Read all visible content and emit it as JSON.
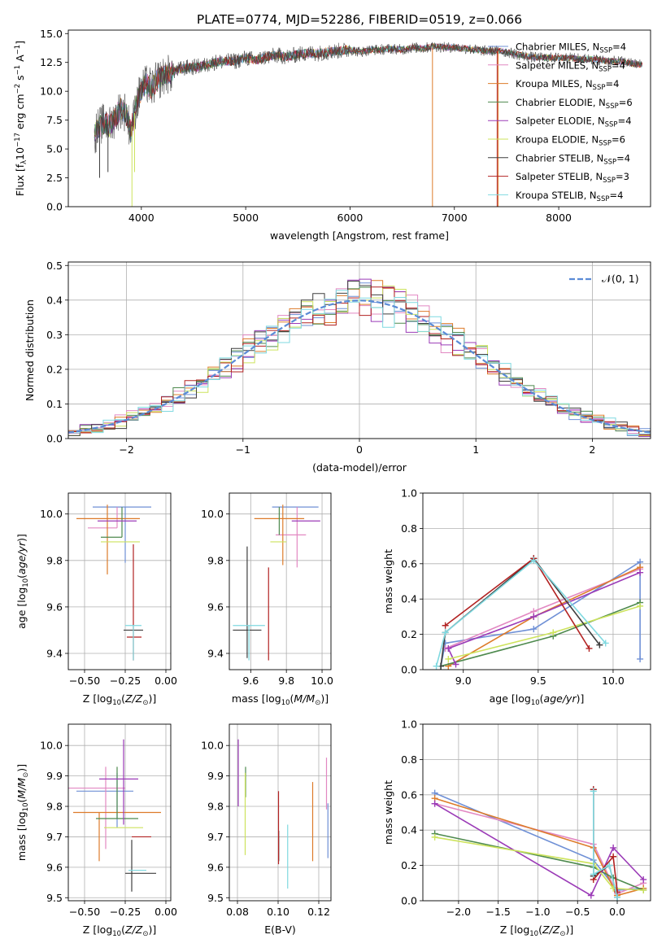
{
  "figure_title": "PLATE=0774, MJD=52286, FIBERID=0519, z=0.066",
  "colors": [
    "#6f90d6",
    "#e288c2",
    "#dd7b2a",
    "#4e8a4e",
    "#9b3bb7",
    "#cde35d",
    "#3f3f3f",
    "#b22222",
    "#7fd9e0"
  ],
  "chart_data": [
    {
      "id": "spectrum",
      "type": "line",
      "title": "PLATE=0774, MJD=52286, FIBERID=0519, z=0.066",
      "xlabel": "wavelength [Angstrom, rest frame]",
      "ylabel": "Flux [f_λ10^-17 erg cm^-2 s^-1 A^-1]",
      "xlim": [
        3300,
        8880
      ],
      "ylim": [
        0,
        15.3
      ],
      "xticks": [
        4000,
        5000,
        6000,
        7000,
        8000
      ],
      "yticks": [
        0.0,
        2.5,
        5.0,
        7.5,
        10.0,
        12.5,
        15.0
      ],
      "grid": false,
      "legend_position": "right",
      "legend": [
        {
          "imf": "Chabrier",
          "lib": "MILES",
          "n": "4"
        },
        {
          "imf": "Salpeter",
          "lib": "MILES",
          "n": "4"
        },
        {
          "imf": "Kroupa",
          "lib": "MILES",
          "n": "4"
        },
        {
          "imf": "Chabrier",
          "lib": "ELODIE",
          "n": "6"
        },
        {
          "imf": "Salpeter",
          "lib": "ELODIE",
          "n": "4"
        },
        {
          "imf": "Kroupa",
          "lib": "ELODIE",
          "n": "6"
        },
        {
          "imf": "Chabrier",
          "lib": "STELIB",
          "n": "4"
        },
        {
          "imf": "Salpeter",
          "lib": "STELIB",
          "n": "3"
        },
        {
          "imf": "Kroupa",
          "lib": "STELIB",
          "n": "4"
        }
      ],
      "data_curve": {
        "x": [
          3550,
          3600,
          3650,
          3700,
          3750,
          3800,
          3850,
          3900,
          3950,
          4000,
          4050,
          4100,
          4150,
          4200,
          4300,
          4400,
          4500,
          4600,
          4700,
          4800,
          4900,
          5000,
          5100,
          5200,
          5300,
          5400,
          5500,
          5600,
          5700,
          5800,
          5900,
          6000,
          6100,
          6200,
          6300,
          6400,
          6500,
          6600,
          6700,
          6800,
          6900,
          7000,
          7100,
          7200,
          7300,
          7400,
          7500,
          7600,
          7700,
          7800,
          7900,
          8000,
          8100,
          8200,
          8300,
          8400,
          8500,
          8600,
          8700,
          8800
        ],
        "y": [
          6.2,
          7.0,
          7.3,
          7.0,
          7.8,
          8.5,
          8.2,
          6.5,
          8.8,
          10.2,
          10.6,
          10.3,
          10.9,
          11.2,
          11.7,
          12.0,
          12.1,
          12.2,
          12.5,
          12.6,
          12.6,
          12.9,
          12.7,
          13.0,
          13.1,
          13.0,
          13.2,
          13.3,
          13.3,
          13.4,
          13.5,
          13.6,
          13.4,
          13.6,
          13.6,
          13.7,
          13.6,
          13.8,
          13.7,
          13.9,
          13.8,
          13.8,
          13.7,
          13.6,
          13.5,
          13.5,
          13.4,
          13.2,
          13.0,
          12.9,
          12.9,
          12.9,
          12.9,
          12.8,
          12.8,
          12.7,
          12.6,
          12.6,
          12.4,
          12.3
        ]
      }
    },
    {
      "id": "residuals",
      "type": "histogram",
      "xlabel": "(data-model)/error",
      "ylabel": "Normed distribution",
      "xlim": [
        -2.5,
        2.5
      ],
      "ylim": [
        0,
        0.51
      ],
      "xticks": [
        -2,
        -1,
        0,
        1,
        2
      ],
      "yticks": [
        0.0,
        0.1,
        0.2,
        0.3,
        0.4,
        0.5
      ],
      "grid": true,
      "legend_position": "upper right",
      "gaussian_label": "𝒩(0, 1)",
      "bin_width": 0.1
    },
    {
      "id": "age-Z",
      "type": "errorbar",
      "xlabel": "Z [log10(Z/Z⊙)]",
      "ylabel": "age [log10(age/yr)]",
      "xlim": [
        -0.6,
        0.03
      ],
      "ylim": [
        9.33,
        10.09
      ],
      "xticks": [
        -0.5,
        -0.25,
        0.0
      ],
      "xticklabels": [
        "−0.50",
        "−0.25",
        "0.00"
      ],
      "yticks": [
        9.4,
        9.6,
        9.8,
        10.0
      ],
      "grid": true,
      "points": [
        {
          "x": -0.25,
          "xerr": [
            0.2,
            0.16
          ],
          "y": 10.03,
          "yerr": [
            0.24,
            0.0
          ]
        },
        {
          "x": -0.3,
          "xerr": [
            0.18,
            0.0
          ],
          "y": 9.94,
          "yerr": [
            0.0,
            0.09
          ]
        },
        {
          "x": -0.36,
          "xerr": [
            0.19,
            0.2
          ],
          "y": 9.98,
          "yerr": [
            0.24,
            0.06
          ]
        },
        {
          "x": -0.27,
          "xerr": [
            0.13,
            0.0
          ],
          "y": 9.9,
          "yerr": [
            0.0,
            0.13
          ]
        },
        {
          "x": -0.3,
          "xerr": [
            0.12,
            0.12
          ],
          "y": 9.97,
          "yerr": [
            0.0,
            0.0
          ]
        },
        {
          "x": -0.31,
          "xerr": [
            0.09,
            0.15
          ],
          "y": 9.88,
          "yerr": [
            0.0,
            0.0
          ]
        },
        {
          "x": -0.22,
          "xerr": [
            0.04,
            0.08
          ],
          "y": 9.5,
          "yerr": [
            0.0,
            0.0
          ]
        },
        {
          "x": -0.2,
          "xerr": [
            0.04,
            0.05
          ],
          "y": 9.47,
          "yerr": [
            0.1,
            0.4
          ]
        },
        {
          "x": -0.2,
          "xerr": [
            0.05,
            0.05
          ],
          "y": 9.52,
          "yerr": [
            0.15,
            0.0
          ]
        }
      ]
    },
    {
      "id": "age-mass",
      "type": "errorbar",
      "xlabel": "mass [log10(M/M⊙)]",
      "ylabel": "",
      "xlim": [
        9.48,
        10.05
      ],
      "ylim": [
        9.33,
        10.09
      ],
      "xticks": [
        9.6,
        9.8,
        10.0
      ],
      "yticks": [
        9.4,
        9.6,
        9.8,
        10.0
      ],
      "grid": true,
      "points": [
        {
          "x": 9.85,
          "xerr": [
            0.13,
            0.13
          ],
          "y": 10.03,
          "yerr": [
            0.0,
            0.0
          ]
        },
        {
          "x": 9.86,
          "xerr": [
            0.12,
            0.05
          ],
          "y": 9.91,
          "yerr": [
            0.14,
            0.12
          ]
        },
        {
          "x": 9.78,
          "xerr": [
            0.16,
            0.12
          ],
          "y": 9.98,
          "yerr": [
            0.2,
            0.06
          ]
        },
        {
          "x": 9.76,
          "xerr": [
            0.0,
            0.0
          ],
          "y": 9.91,
          "yerr": [
            0.0,
            0.12
          ]
        },
        {
          "x": 9.9,
          "xerr": [
            0.07,
            0.09
          ],
          "y": 9.97,
          "yerr": [
            0.0,
            0.0
          ]
        },
        {
          "x": 9.75,
          "xerr": [
            0.04,
            0.05
          ],
          "y": 9.88,
          "yerr": [
            0.0,
            0.0
          ]
        },
        {
          "x": 9.58,
          "xerr": [
            0.08,
            0.08
          ],
          "y": 9.5,
          "yerr": [
            0.12,
            0.36
          ]
        },
        {
          "x": 9.7,
          "xerr": [
            0.0,
            0.0
          ],
          "y": 9.47,
          "yerr": [
            0.1,
            0.3
          ]
        },
        {
          "x": 9.59,
          "xerr": [
            0.09,
            0.09
          ],
          "y": 9.52,
          "yerr": [
            0.15,
            0.0
          ]
        }
      ]
    },
    {
      "id": "weight-age",
      "type": "line",
      "xlabel": "age [log10(age/yr)]",
      "ylabel": "mass weight",
      "xlim": [
        8.73,
        10.25
      ],
      "ylim": [
        0.0,
        1.0
      ],
      "xticks": [
        9.0,
        9.5,
        10.0
      ],
      "yticks": [
        0.0,
        0.2,
        0.4,
        0.6,
        0.8,
        1.0
      ],
      "grid": true,
      "series": [
        {
          "x": [
            8.85,
            8.88,
            9.47,
            10.18,
            10.18
          ],
          "y": [
            0.02,
            0.15,
            0.23,
            0.61,
            0.06
          ]
        },
        {
          "x": [
            8.88,
            9.47,
            10.18
          ],
          "y": [
            0.12,
            0.33,
            0.57
          ]
        },
        {
          "x": [
            8.9,
            9.47,
            10.18
          ],
          "y": [
            0.02,
            0.3,
            0.58
          ]
        },
        {
          "x": [
            8.85,
            9.6,
            10.18
          ],
          "y": [
            0.02,
            0.19,
            0.38
          ]
        },
        {
          "x": [
            8.95,
            8.9,
            9.47,
            10.18
          ],
          "y": [
            0.03,
            0.12,
            0.3,
            0.55
          ]
        },
        {
          "x": [
            8.9,
            9.6,
            10.18
          ],
          "y": [
            0.06,
            0.21,
            0.36
          ]
        },
        {
          "x": [
            8.85,
            8.88,
            9.47,
            9.91
          ],
          "y": [
            0.02,
            0.21,
            0.63,
            0.14
          ]
        },
        {
          "x": [
            8.88,
            9.47,
            9.84
          ],
          "y": [
            0.25,
            0.63,
            0.12
          ]
        },
        {
          "x": [
            8.82,
            8.88,
            9.47,
            9.95
          ],
          "y": [
            0.02,
            0.21,
            0.62,
            0.15
          ]
        }
      ]
    },
    {
      "id": "mass-Z",
      "type": "errorbar",
      "xlabel": "Z [log10(Z/Z⊙)]",
      "ylabel": "mass [log10(M/M⊙)]",
      "xlim": [
        -0.6,
        0.03
      ],
      "ylim": [
        9.49,
        10.07
      ],
      "xticks": [
        -0.5,
        -0.25,
        0.0
      ],
      "xticklabels": [
        "−0.50",
        "−0.25",
        "0.00"
      ],
      "yticks": [
        9.5,
        9.6,
        9.7,
        9.8,
        9.9,
        10.0
      ],
      "grid": true,
      "points": [
        {
          "x": -0.3,
          "xerr": [
            0.25,
            0.1
          ],
          "y": 9.85,
          "yerr": [
            0.12,
            0.06
          ]
        },
        {
          "x": -0.37,
          "xerr": [
            0.23,
            0.12
          ],
          "y": 9.86,
          "yerr": [
            0.2,
            0.07
          ]
        },
        {
          "x": -0.41,
          "xerr": [
            0.16,
            0.38
          ],
          "y": 9.78,
          "yerr": [
            0.16,
            0.0
          ]
        },
        {
          "x": -0.3,
          "xerr": [
            0.13,
            0.13
          ],
          "y": 9.76,
          "yerr": [
            0.0,
            0.17
          ]
        },
        {
          "x": -0.26,
          "xerr": [
            0.15,
            0.09
          ],
          "y": 9.89,
          "yerr": [
            0.15,
            0.13
          ]
        },
        {
          "x": -0.26,
          "xerr": [
            0.12,
            0.12
          ],
          "y": 9.73,
          "yerr": [
            0.0,
            0.0
          ]
        },
        {
          "x": -0.21,
          "xerr": [
            0.04,
            0.15
          ],
          "y": 9.58,
          "yerr": [
            0.06,
            0.11
          ]
        },
        {
          "x": -0.15,
          "xerr": [
            0.06,
            0.06
          ],
          "y": 9.7,
          "yerr": [
            0.0,
            0.0
          ]
        },
        {
          "x": -0.2,
          "xerr": [
            0.03,
            0.08
          ],
          "y": 9.59,
          "yerr": [
            0.0,
            0.0
          ]
        }
      ]
    },
    {
      "id": "mass-EBV",
      "type": "errorbar",
      "xlabel": "E(B-V)",
      "ylabel": "",
      "xlim": [
        0.076,
        0.126
      ],
      "ylim": [
        9.49,
        10.07
      ],
      "xticks": [
        0.08,
        0.1,
        0.12
      ],
      "xticklabels": [
        "0.08",
        "0.10",
        "0.12"
      ],
      "yticks": [
        9.5,
        9.6,
        9.7,
        9.8,
        9.9,
        10.0
      ],
      "grid": true,
      "points": [
        {
          "x": 0.1245,
          "y": 9.75,
          "yerr": [
            0.12,
            0.06
          ]
        },
        {
          "x": 0.1238,
          "y": 9.86,
          "yerr": [
            0.07,
            0.1
          ]
        },
        {
          "x": 0.117,
          "y": 9.75,
          "yerr": [
            0.13,
            0.13
          ]
        },
        {
          "x": 0.084,
          "y": 9.83,
          "yerr": [
            0.0,
            0.1
          ]
        },
        {
          "x": 0.0804,
          "y": 9.91,
          "yerr": [
            0.11,
            0.11
          ]
        },
        {
          "x": 0.0838,
          "y": 9.79,
          "yerr": [
            0.15,
            0.12
          ]
        },
        {
          "x": 0.1003,
          "y": 9.67,
          "yerr": [
            0.05,
            0.05
          ]
        },
        {
          "x": 0.1002,
          "y": 9.75,
          "yerr": [
            0.14,
            0.1
          ]
        },
        {
          "x": 0.1047,
          "y": 9.63,
          "yerr": [
            0.1,
            0.11
          ]
        }
      ]
    },
    {
      "id": "weight-Z",
      "type": "line",
      "xlabel": "Z [log10(Z/Z⊙)]",
      "ylabel": "mass weight",
      "xlim": [
        -2.45,
        0.42
      ],
      "ylim": [
        0.0,
        1.0
      ],
      "xticks": [
        -2.0,
        -1.5,
        -1.0,
        -0.5,
        0.0
      ],
      "xticklabels": [
        "−2.0",
        "−1.5",
        "−1.0",
        "−0.5",
        "0.0"
      ],
      "yticks": [
        0.0,
        0.2,
        0.4,
        0.6,
        0.8,
        1.0
      ],
      "grid": true,
      "series": [
        {
          "x": [
            -2.3,
            -0.3,
            0.0,
            0.33
          ],
          "y": [
            0.61,
            0.23,
            0.06,
            0.07
          ]
        },
        {
          "x": [
            -2.3,
            -0.3,
            0.0,
            0.33
          ],
          "y": [
            0.55,
            0.32,
            0.04,
            0.1
          ]
        },
        {
          "x": [
            -2.3,
            -0.3,
            0.0,
            0.33
          ],
          "y": [
            0.58,
            0.3,
            0.03,
            0.07
          ]
        },
        {
          "x": [
            -2.3,
            -0.3,
            -0.05,
            0.33
          ],
          "y": [
            0.38,
            0.19,
            0.13,
            0.06
          ]
        },
        {
          "x": [
            -2.3,
            -0.33,
            -0.05,
            0.33
          ],
          "y": [
            0.55,
            0.03,
            0.3,
            0.12
          ]
        },
        {
          "x": [
            -2.3,
            -0.3,
            -0.05,
            0.33
          ],
          "y": [
            0.36,
            0.21,
            0.07,
            0.06
          ]
        },
        {
          "x": [
            -0.3,
            -0.3,
            -0.1,
            0.0
          ],
          "y": [
            0.63,
            0.14,
            0.2,
            0.02
          ]
        },
        {
          "x": [
            -0.3,
            -0.3,
            -0.05,
            0.0
          ],
          "y": [
            0.63,
            0.12,
            0.25,
            0.05
          ]
        },
        {
          "x": [
            -0.3,
            -0.3,
            -0.1,
            0.0
          ],
          "y": [
            0.62,
            0.15,
            0.2,
            0.02
          ]
        }
      ]
    }
  ]
}
